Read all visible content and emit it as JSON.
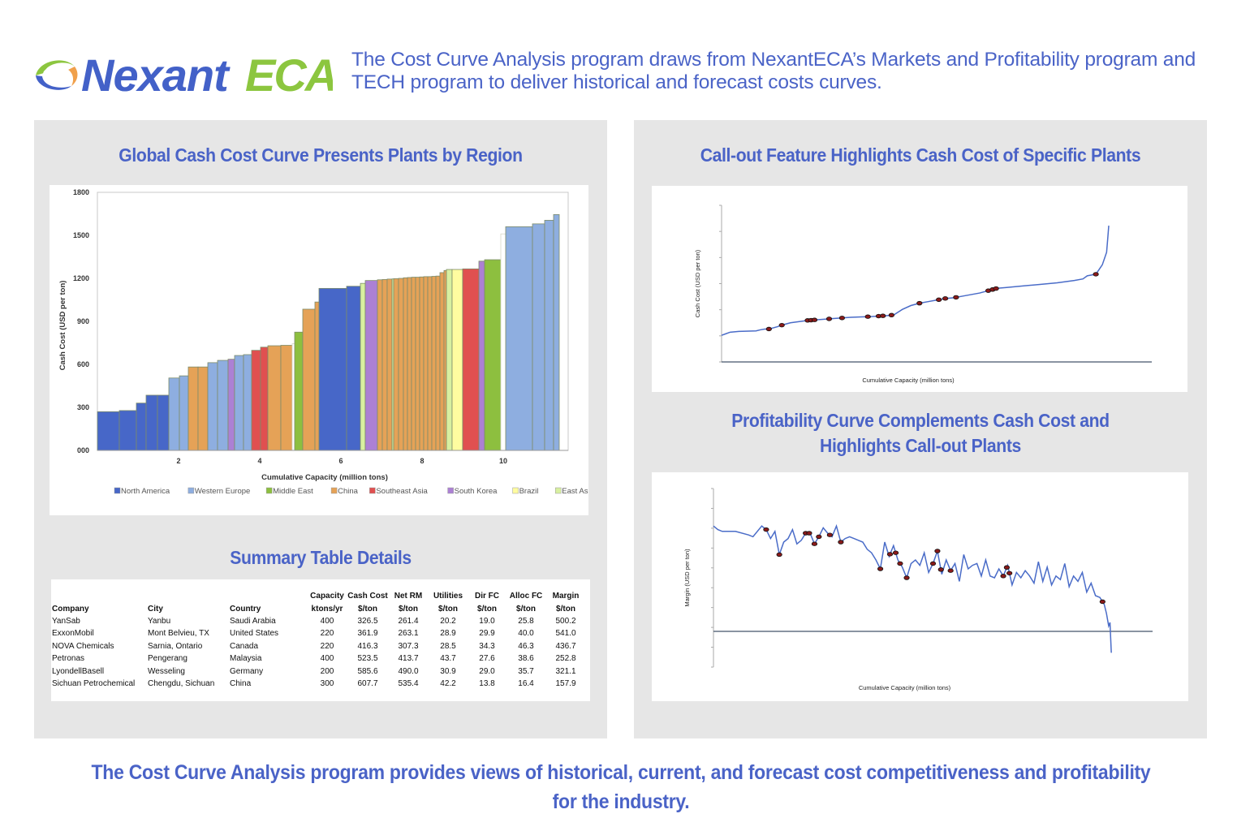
{
  "header": {
    "logo": {
      "name_part1": "Nexant",
      "name_part2": "ECA",
      "color_blue": "#4361c8",
      "color_green": "#8cc63f",
      "color_orange": "#f0a04b"
    },
    "intro_text": "The Cost Curve Analysis program draws from NexantECA’s Markets and Profitability program and TECH program to deliver historical and forecast costs curves."
  },
  "left_panel": {
    "chart_title": "Global Cash Cost Curve Presents Plants by Region",
    "table_title": "Summary Table Details"
  },
  "right_panel": {
    "callout_title": "Call-out Feature Highlights Cash Cost of Specific Plants",
    "profit_title_line1": "Profitability Curve Complements Cash Cost and",
    "profit_title_line2": "Highlights Call-out Plants"
  },
  "summary_table": {
    "header_row1": [
      "",
      "",
      "",
      "Capacity",
      "Cash Cost",
      "Net RM",
      "Utilities",
      "Dir FC",
      "Alloc FC",
      "Margin"
    ],
    "header_row2": [
      "Company",
      "City",
      "Country",
      "ktons/yr",
      "$/ton",
      "$/ton",
      "$/ton",
      "$/ton",
      "$/ton",
      "$/ton"
    ],
    "rows": [
      [
        "YanSab",
        "Yanbu",
        "Saudi Arabia",
        "400",
        "326.5",
        "261.4",
        "20.2",
        "19.0",
        "25.8",
        "500.2"
      ],
      [
        "ExxonMobil",
        "Mont Belvieu, TX",
        "United States",
        "220",
        "361.9",
        "263.1",
        "28.9",
        "29.9",
        "40.0",
        "541.0"
      ],
      [
        "NOVA Chemicals",
        "Sarnia, Ontario",
        "Canada",
        "220",
        "416.3",
        "307.3",
        "28.5",
        "34.3",
        "46.3",
        "436.7"
      ],
      [
        "Petronas",
        "Pengerang",
        "Malaysia",
        "400",
        "523.5",
        "413.7",
        "43.7",
        "27.6",
        "38.6",
        "252.8"
      ],
      [
        "LyondellBasell",
        "Wesseling",
        "Germany",
        "200",
        "585.6",
        "490.0",
        "30.9",
        "29.0",
        "35.7",
        "321.1"
      ],
      [
        "Sichuan Petrochemical",
        "Chengdu, Sichuan",
        "China",
        "300",
        "607.7",
        "535.4",
        "42.2",
        "13.8",
        "16.4",
        "157.9"
      ]
    ]
  },
  "footer": {
    "text_line1": "The Cost Curve Analysis program provides views of historical, current, and forecast cost competitiveness and profitability",
    "text_line2": "for the industry."
  },
  "chart_data": [
    {
      "type": "bar",
      "variant": "variable-width cost curve",
      "title": "Global Cash Cost Curve Presents Plants by Region",
      "xlabel": "Cumulative Capacity (million tons)",
      "ylabel": "Cash Cost (USD per ton)",
      "xlim": [
        0,
        11.6
      ],
      "ylim": [
        0,
        1800
      ],
      "xticks": [
        "2",
        "4",
        "6",
        "8",
        "10"
      ],
      "xtick_values": [
        2,
        4,
        6,
        8,
        10
      ],
      "yticks": [
        "000",
        "300",
        "600",
        "900",
        "1200",
        "1500",
        "1800"
      ],
      "ytick_values": [
        0,
        300,
        600,
        900,
        1200,
        1500,
        1800
      ],
      "legend_position": "bottom",
      "legend": [
        {
          "name": "North America",
          "color": "#4767c8"
        },
        {
          "name": "Western Europe",
          "color": "#8eaee0"
        },
        {
          "name": "Middle East",
          "color": "#8dbf3f"
        },
        {
          "name": "China",
          "color": "#e5a257"
        },
        {
          "name": "Southeast Asia",
          "color": "#e05050"
        },
        {
          "name": "South Korea",
          "color": "#ac80d4"
        },
        {
          "name": "Brazil",
          "color": "#fffca0"
        },
        {
          "name": "East Asia",
          "color": "#d8f0a0"
        }
      ],
      "bars": [
        {
          "region": "North America",
          "capacity": 0.54,
          "cost": 270
        },
        {
          "region": "North America",
          "capacity": 0.42,
          "cost": 278
        },
        {
          "region": "North America",
          "capacity": 0.24,
          "cost": 330
        },
        {
          "region": "North America",
          "capacity": 0.28,
          "cost": 385
        },
        {
          "region": "North America",
          "capacity": 0.28,
          "cost": 385
        },
        {
          "region": "Western Europe",
          "capacity": 0.26,
          "cost": 505
        },
        {
          "region": "Western Europe",
          "capacity": 0.22,
          "cost": 520
        },
        {
          "region": "China",
          "capacity": 0.24,
          "cost": 582
        },
        {
          "region": "China",
          "capacity": 0.24,
          "cost": 582
        },
        {
          "region": "Western Europe",
          "capacity": 0.24,
          "cost": 612
        },
        {
          "region": "Western Europe",
          "capacity": 0.26,
          "cost": 628
        },
        {
          "region": "South Korea",
          "capacity": 0.16,
          "cost": 636
        },
        {
          "region": "Western Europe",
          "capacity": 0.22,
          "cost": 662
        },
        {
          "region": "Western Europe",
          "capacity": 0.2,
          "cost": 668
        },
        {
          "region": "Southeast Asia",
          "capacity": 0.22,
          "cost": 698
        },
        {
          "region": "Southeast Asia",
          "capacity": 0.18,
          "cost": 720
        },
        {
          "region": "China",
          "capacity": 0.32,
          "cost": 730
        },
        {
          "region": "China",
          "capacity": 0.28,
          "cost": 733
        },
        {
          "region": "Brazil",
          "capacity": 0.06,
          "cost": 745
        },
        {
          "region": "Middle East",
          "capacity": 0.2,
          "cost": 825
        },
        {
          "region": "China",
          "capacity": 0.3,
          "cost": 985
        },
        {
          "region": "China",
          "capacity": 0.1,
          "cost": 1035
        },
        {
          "region": "North America",
          "capacity": 0.68,
          "cost": 1130
        },
        {
          "region": "North America",
          "capacity": 0.34,
          "cost": 1145
        },
        {
          "region": "East Asia",
          "capacity": 0.12,
          "cost": 1165
        },
        {
          "region": "South Korea",
          "capacity": 0.3,
          "cost": 1185
        },
        {
          "region": "China",
          "capacity": 0.12,
          "cost": 1190
        },
        {
          "region": "China",
          "capacity": 0.12,
          "cost": 1192
        },
        {
          "region": "China",
          "capacity": 0.12,
          "cost": 1195
        },
        {
          "region": "East Asia",
          "capacity": 0.04,
          "cost": 1196
        },
        {
          "region": "China",
          "capacity": 0.12,
          "cost": 1198
        },
        {
          "region": "China",
          "capacity": 0.12,
          "cost": 1200
        },
        {
          "region": "China",
          "capacity": 0.1,
          "cost": 1204
        },
        {
          "region": "China",
          "capacity": 0.1,
          "cost": 1206
        },
        {
          "region": "China",
          "capacity": 0.1,
          "cost": 1208
        },
        {
          "region": "China",
          "capacity": 0.1,
          "cost": 1208
        },
        {
          "region": "China",
          "capacity": 0.1,
          "cost": 1210
        },
        {
          "region": "China",
          "capacity": 0.1,
          "cost": 1212
        },
        {
          "region": "China",
          "capacity": 0.1,
          "cost": 1212
        },
        {
          "region": "China",
          "capacity": 0.1,
          "cost": 1214
        },
        {
          "region": "China",
          "capacity": 0.1,
          "cost": 1216
        },
        {
          "region": "China",
          "capacity": 0.1,
          "cost": 1240
        },
        {
          "region": "China",
          "capacity": 0.06,
          "cost": 1255
        },
        {
          "region": "East Asia",
          "capacity": 0.14,
          "cost": 1262
        },
        {
          "region": "Brazil",
          "capacity": 0.26,
          "cost": 1262
        },
        {
          "region": "Southeast Asia",
          "capacity": 0.4,
          "cost": 1266
        },
        {
          "region": "South Korea",
          "capacity": 0.14,
          "cost": 1320
        },
        {
          "region": "Middle East",
          "capacity": 0.4,
          "cost": 1330
        },
        {
          "region": "Brazil",
          "capacity": 0.12,
          "cost": 1510
        },
        {
          "region": "Western Europe",
          "capacity": 0.66,
          "cost": 1560
        },
        {
          "region": "Western Europe",
          "capacity": 0.3,
          "cost": 1580
        },
        {
          "region": "Western Europe",
          "capacity": 0.22,
          "cost": 1605
        },
        {
          "region": "Western Europe",
          "capacity": 0.14,
          "cost": 1645
        }
      ]
    },
    {
      "type": "line",
      "title": "Call-out Feature Highlights Cash Cost of Specific Plants",
      "xlabel": "Cumulative Capacity (million tons)",
      "ylabel": "Cash Cost (USD per ton)",
      "xlim": [
        0,
        100
      ],
      "ylim": [
        0,
        100
      ],
      "y_tick_count": 7,
      "tick_labels_shown": false,
      "line_color": "#4a6cc8",
      "marker_color": "#8b1a1a",
      "series": [
        {
          "name": "cash cost",
          "x": [
            0,
            1,
            2,
            4,
            8,
            9,
            10,
            11,
            13,
            14,
            16,
            20,
            25,
            30,
            35,
            38,
            40,
            42,
            44,
            46,
            48,
            50,
            52,
            54,
            56,
            60,
            64,
            66,
            70,
            74,
            78,
            82,
            84,
            85,
            86,
            87,
            88,
            88.5,
            89,
            89.5,
            89.8,
            90
          ],
          "y": [
            17,
            18,
            19,
            19.5,
            19.8,
            20.5,
            21,
            21,
            22.5,
            23.5,
            25,
            26.5,
            27.5,
            28.5,
            29,
            29.5,
            30,
            33.5,
            36,
            37.5,
            38.5,
            39.5,
            40.5,
            41,
            42,
            44,
            47,
            47.5,
            48.5,
            49.5,
            50.5,
            52,
            53,
            55,
            55.5,
            56,
            60,
            62,
            66,
            70,
            80,
            87
          ]
        }
      ],
      "callouts_x": [
        11,
        14,
        20,
        20.8,
        21.6,
        25,
        28,
        34,
        36.5,
        37.5,
        39.5,
        46,
        50.5,
        52,
        54.5,
        62,
        63,
        63.8,
        87
      ]
    },
    {
      "type": "line",
      "title": "Profitability Curve Complements Cash Cost and Highlights Call-out Plants",
      "xlabel": "Cumulative Capacity (million tons)",
      "ylabel": "Margin (USD per ton)",
      "xlim": [
        0,
        100
      ],
      "ylim": [
        -20,
        80
      ],
      "zero_line": true,
      "y_tick_count": 10,
      "tick_labels_shown": false,
      "line_color": "#4a6cc8",
      "marker_color": "#8b1a1a",
      "series": [
        {
          "name": "margin",
          "x": [
            0,
            1,
            2,
            3,
            5,
            8,
            9,
            11,
            12,
            13,
            14,
            15,
            16,
            17,
            18,
            19,
            20,
            21,
            22,
            23,
            24,
            25,
            26,
            27,
            28,
            29,
            30,
            31,
            32,
            33,
            34,
            35,
            36,
            37,
            38,
            39,
            40,
            41,
            42,
            43,
            44,
            45,
            46,
            47,
            48,
            49,
            50,
            51,
            52,
            53,
            54,
            55,
            56,
            57,
            58,
            59,
            60,
            61,
            62,
            63,
            64,
            65,
            66,
            67,
            68,
            69,
            70,
            71,
            72,
            73,
            74,
            75,
            76,
            77,
            78,
            79,
            80,
            81,
            82,
            83,
            84,
            85,
            86,
            87,
            88,
            89,
            89.5,
            90,
            90.3,
            90.6
          ],
          "y": [
            59,
            57,
            56,
            56,
            56,
            54,
            53,
            59,
            57,
            52,
            56,
            43,
            50,
            52,
            57,
            49,
            51,
            55,
            55,
            49,
            53,
            58,
            55,
            53,
            59,
            50,
            52,
            53,
            52,
            51,
            50,
            46,
            44,
            40,
            35,
            50,
            42,
            48,
            40,
            36,
            30,
            38,
            40,
            37,
            44,
            33,
            38,
            45,
            32,
            40,
            34,
            38,
            28,
            43,
            35,
            37,
            38,
            31,
            40,
            31,
            30,
            35,
            31,
            37,
            26,
            33,
            30,
            34,
            31,
            27,
            39,
            28,
            36,
            26,
            31,
            29,
            38,
            25,
            31,
            28,
            33,
            22,
            27,
            20,
            19,
            15,
            10,
            3,
            5,
            -12
          ]
        }
      ],
      "callouts_x": [
        12,
        15,
        21,
        21.8,
        23,
        24,
        26.5,
        29,
        38,
        40.2,
        41.5,
        42.5,
        44,
        50,
        51,
        51.8,
        54,
        66,
        66.8,
        67.4,
        88.6
      ]
    }
  ]
}
